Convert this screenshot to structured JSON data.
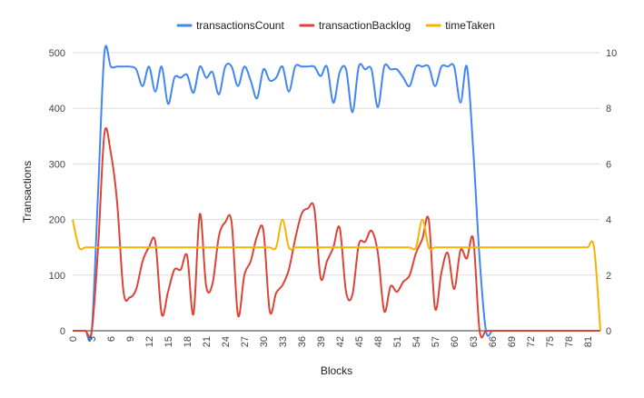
{
  "chart_data": {
    "type": "line",
    "xlabel": "Blocks",
    "ylabel": "Transactions",
    "y2label": "",
    "legend_position": "top",
    "grid": true,
    "ylim": [
      0,
      500
    ],
    "y2lim": [
      0,
      10
    ],
    "yticks": [
      0,
      100,
      200,
      300,
      400,
      500
    ],
    "y2ticks": [
      0,
      2,
      4,
      6,
      8,
      10
    ],
    "xticks": [
      0,
      3,
      6,
      9,
      12,
      15,
      18,
      21,
      24,
      27,
      30,
      33,
      36,
      39,
      42,
      45,
      48,
      51,
      54,
      57,
      60,
      63,
      66,
      69,
      72,
      75,
      78,
      81
    ],
    "x": [
      0,
      1,
      2,
      3,
      4,
      5,
      6,
      7,
      8,
      9,
      10,
      11,
      12,
      13,
      14,
      15,
      16,
      17,
      18,
      19,
      20,
      21,
      22,
      23,
      24,
      25,
      26,
      27,
      28,
      29,
      30,
      31,
      32,
      33,
      34,
      35,
      36,
      37,
      38,
      39,
      40,
      41,
      42,
      43,
      44,
      45,
      46,
      47,
      48,
      49,
      50,
      51,
      52,
      53,
      54,
      55,
      56,
      57,
      58,
      59,
      60,
      61,
      62,
      63,
      64,
      65,
      66,
      67,
      68,
      69,
      70,
      71,
      72,
      73,
      74,
      75,
      76,
      77,
      78,
      79,
      80,
      81,
      82,
      83
    ],
    "series": [
      {
        "name": "transactionsCount",
        "color": "#4285f4",
        "axis": "left",
        "values": [
          0,
          0,
          0,
          0,
          250,
          500,
          475,
          475,
          475,
          475,
          470,
          440,
          475,
          430,
          475,
          408,
          455,
          455,
          460,
          428,
          475,
          455,
          465,
          425,
          475,
          475,
          440,
          475,
          450,
          418,
          470,
          450,
          455,
          475,
          430,
          475,
          475,
          475,
          475,
          458,
          475,
          410,
          465,
          470,
          393,
          475,
          470,
          470,
          402,
          475,
          470,
          470,
          455,
          440,
          475,
          475,
          475,
          440,
          475,
          475,
          475,
          410,
          475,
          325,
          130,
          0,
          0,
          0,
          0,
          0,
          0,
          0,
          0,
          0,
          0,
          0,
          0,
          0,
          0,
          0,
          0,
          0,
          0,
          0
        ]
      },
      {
        "name": "transactionBacklog",
        "color": "#db4437",
        "axis": "left",
        "values": [
          0,
          0,
          0,
          0,
          150,
          355,
          320,
          230,
          70,
          60,
          75,
          125,
          150,
          160,
          30,
          70,
          110,
          110,
          135,
          30,
          210,
          80,
          85,
          170,
          195,
          195,
          28,
          100,
          125,
          170,
          180,
          35,
          68,
          82,
          110,
          165,
          210,
          220,
          220,
          95,
          125,
          150,
          185,
          70,
          65,
          155,
          160,
          180,
          140,
          35,
          80,
          70,
          88,
          100,
          140,
          165,
          200,
          40,
          105,
          140,
          75,
          145,
          130,
          165,
          0,
          0,
          0,
          0,
          0,
          0,
          0,
          0,
          0,
          0,
          0,
          0,
          0,
          0,
          0,
          0,
          0,
          0,
          0,
          0
        ]
      },
      {
        "name": "timeTaken",
        "color": "#f4b400",
        "axis": "right",
        "values": [
          4,
          3,
          3,
          3,
          3,
          3,
          3,
          3,
          3,
          3,
          3,
          3,
          3,
          3,
          3,
          3,
          3,
          3,
          3,
          3,
          3,
          3,
          3,
          3,
          3,
          3,
          3,
          3,
          3,
          3,
          3,
          3,
          3,
          4,
          3,
          3,
          3,
          3,
          3,
          3,
          3,
          3,
          3,
          3,
          3,
          3,
          3,
          3,
          3,
          3,
          3,
          3,
          3,
          3,
          3,
          4,
          3,
          3,
          3,
          3,
          3,
          3,
          3,
          3,
          3,
          3,
          3,
          3,
          3,
          3,
          3,
          3,
          3,
          3,
          3,
          3,
          3,
          3,
          3,
          3,
          3,
          3,
          3,
          0
        ]
      }
    ]
  }
}
